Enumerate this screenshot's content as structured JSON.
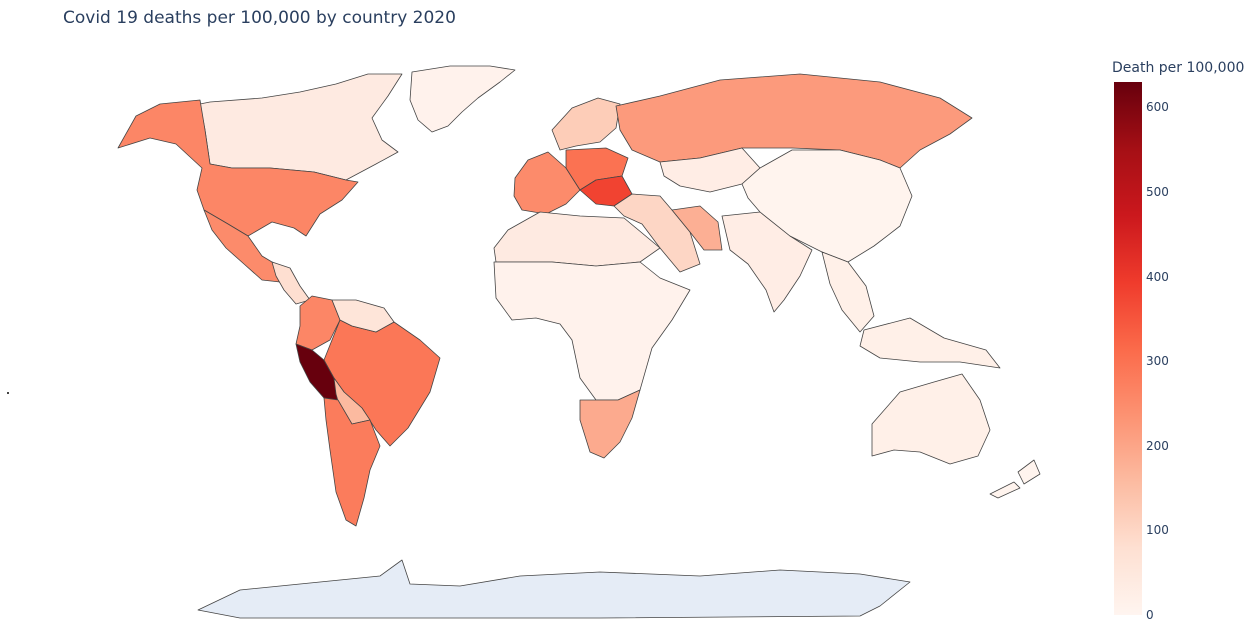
{
  "title": "Covid 19 deaths per 100,000 by country 2020",
  "colorbar": {
    "title": "Death per 100,000",
    "ticks": [
      "0",
      "100",
      "200",
      "300",
      "400",
      "500",
      "600"
    ],
    "range": [
      0,
      630
    ],
    "colorscale": [
      "#fff5f0",
      "#fee0d2",
      "#fcbba1",
      "#fc9272",
      "#fb6a4a",
      "#ef3b2c",
      "#cb181d",
      "#a50f15",
      "#67000d"
    ]
  },
  "colors": {
    "no_data": "#e5ecf6",
    "border": "#444444",
    "title_text": "#2a3f5f"
  },
  "regions": [
    {
      "name": "Greenland",
      "value": 10
    },
    {
      "name": "Canada",
      "value": 40
    },
    {
      "name": "Alaska / United States",
      "value": 260
    },
    {
      "name": "Mexico",
      "value": 250
    },
    {
      "name": "Central America",
      "value": 80
    },
    {
      "name": "Colombia / Ecuador",
      "value": 260
    },
    {
      "name": "Peru",
      "value": 630
    },
    {
      "name": "Brazil",
      "value": 290
    },
    {
      "name": "Bolivia / Paraguay",
      "value": 160
    },
    {
      "name": "Argentina / Chile",
      "value": 280
    },
    {
      "name": "Venezuela / Guianas",
      "value": 60
    },
    {
      "name": "Western Europe",
      "value": 250
    },
    {
      "name": "Central Europe",
      "value": 300
    },
    {
      "name": "Balkans",
      "value": 380
    },
    {
      "name": "Scandinavia",
      "value": 120
    },
    {
      "name": "Russia",
      "value": 220
    },
    {
      "name": "Kazakhstan",
      "value": 30
    },
    {
      "name": "Turkey / Middle East",
      "value": 100
    },
    {
      "name": "Iran",
      "value": 180
    },
    {
      "name": "North Africa",
      "value": 40
    },
    {
      "name": "Sub-Saharan Africa",
      "value": 10
    },
    {
      "name": "Southern Africa",
      "value": 190
    },
    {
      "name": "South Asia",
      "value": 30
    },
    {
      "name": "China / East Asia",
      "value": 5
    },
    {
      "name": "Southeast Asia",
      "value": 20
    },
    {
      "name": "Australia",
      "value": 20
    },
    {
      "name": "New Zealand",
      "value": 5
    },
    {
      "name": "Antarctica",
      "value": null
    }
  ]
}
